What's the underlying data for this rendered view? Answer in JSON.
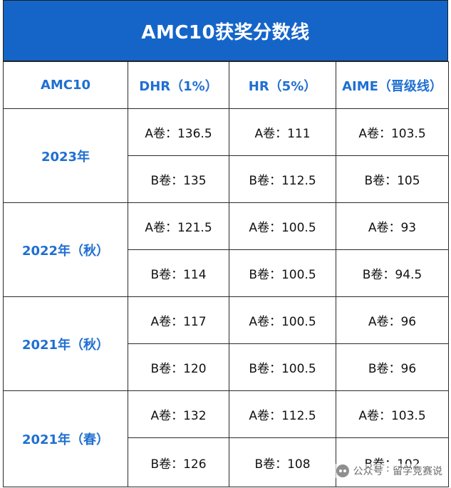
{
  "title": "AMC10获奖分数线",
  "headers": [
    "AMC10",
    "DHR（1%）",
    "HR（5%）",
    "AIME（晋级线）"
  ],
  "rows": [
    {
      "year": "2023年",
      "a": [
        "A卷：136.5",
        "A卷：111",
        "A卷：103.5"
      ],
      "b": [
        "B卷：135",
        "B卷：112.5",
        "B卷：105"
      ]
    },
    {
      "year": "2022年（秋）",
      "a": [
        "A卷：121.5",
        "A卷：100.5",
        "A卷：93"
      ],
      "b": [
        "B卷：114",
        "B卷：100.5",
        "B卷：94.5"
      ]
    },
    {
      "year": "2021年（秋）",
      "a": [
        "A卷：117",
        "A卷：100.5",
        "A卷：96"
      ],
      "b": [
        "B卷：120",
        "B卷：100.5",
        "B卷：96"
      ]
    },
    {
      "year": "2021年（春）",
      "a": [
        "A卷：132",
        "A卷：112.5",
        "A卷：103.5"
      ],
      "b": [
        "B卷：126",
        "B卷：108",
        "B卷：102"
      ]
    }
  ],
  "watermark": {
    "text": "公众号 · 留学竞赛说",
    "icon": "wechat-icon"
  },
  "colors": {
    "title_bg": "#1565c8",
    "header_text": "#1f6fd1"
  }
}
